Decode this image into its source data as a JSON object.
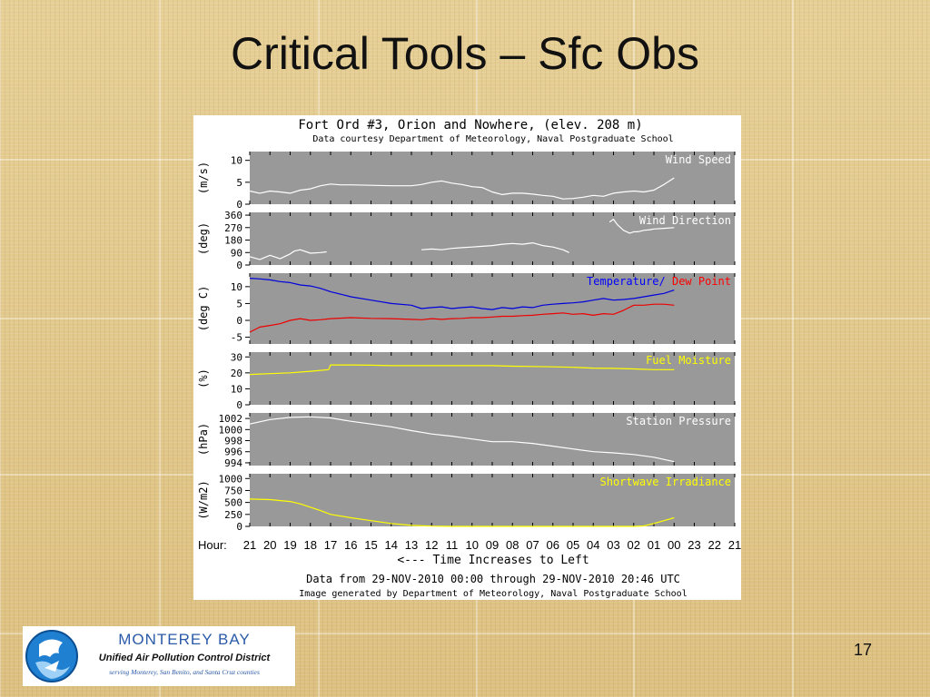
{
  "slide": {
    "title": "Critical Tools – Sfc Obs",
    "page_number": "17"
  },
  "logo": {
    "line1": "MONTEREY BAY",
    "line2": "Unified Air Pollution Control District",
    "line3": "serving Monterey, San Benito, and Santa Cruz counties"
  },
  "chart_data": {
    "type": "line",
    "title": "Fort Ord #3, Orion and Nowhere, (elev. 208 m)",
    "subtitle": "Data courtesy Department of Meteorology, Naval Postgraduate School",
    "x_label_prefix": "Hour:",
    "x_ticks": [
      "21",
      "20",
      "19",
      "18",
      "17",
      "16",
      "15",
      "14",
      "13",
      "12",
      "11",
      "10",
      "09",
      "08",
      "07",
      "06",
      "05",
      "04",
      "03",
      "02",
      "01",
      "00",
      "23",
      "22",
      "21"
    ],
    "x_caption": "<--- Time Increases to Left",
    "footer1": "Data from 29-NOV-2010 00:00 through 29-NOV-2010 20:46 UTC",
    "footer2": "Image generated by Department of Meteorology, Naval Postgraduate School",
    "panels": [
      {
        "label": "Wind Speed",
        "label_color": "#ffffff",
        "ylabel": "(m/s)",
        "ylim": [
          0,
          12
        ],
        "yticks": [
          "0",
          "5",
          "10"
        ],
        "ytick_values": [
          0,
          5,
          10
        ],
        "series": [
          {
            "color": "#ffffff",
            "x": [
              21,
              20.5,
              20,
              19.5,
              19,
              18.5,
              18,
              17.5,
              17,
              16.5,
              16,
              15,
              14,
              13,
              12.5,
              12,
              11.5,
              11,
              10.5,
              10,
              9.5,
              9,
              8.5,
              8,
              7.5,
              7,
              6.5,
              6,
              5.5,
              5,
              4.5,
              4,
              3.5,
              3,
              2.5,
              2,
              1.5,
              1,
              0.5,
              0
            ],
            "y": [
              3,
              2.5,
              3,
              2.8,
              2.5,
              3.2,
              3.5,
              4.2,
              4.6,
              4.4,
              4.4,
              4.3,
              4.2,
              4.2,
              4.5,
              5,
              5.3,
              4.8,
              4.5,
              4,
              3.8,
              2.8,
              2.2,
              2.5,
              2.5,
              2.3,
              2,
              1.8,
              1.2,
              1.3,
              1.6,
              2,
              1.8,
              2.5,
              2.8,
              3,
              2.8,
              3.2,
              4.5,
              6
            ]
          }
        ]
      },
      {
        "label": "Wind Direction",
        "label_color": "#ffffff",
        "ylabel": "(deg)",
        "ylim": [
          0,
          380
        ],
        "yticks": [
          "0",
          "90",
          "180",
          "270",
          "360"
        ],
        "ytick_values": [
          0,
          90,
          180,
          270,
          360
        ],
        "series": [
          {
            "color": "#ffffff",
            "x": [
              21,
              20.5,
              20,
              19.5,
              19,
              18.8,
              18.5,
              18,
              17.5,
              17.2
            ],
            "y": [
              60,
              40,
              70,
              45,
              80,
              100,
              110,
              85,
              90,
              95
            ]
          },
          {
            "color": "#ffffff",
            "x": [
              12.5,
              12,
              11.5,
              11,
              10.5,
              10,
              9.5,
              9,
              8.5,
              8,
              7.5,
              7,
              6.5,
              6,
              5.5,
              5.2
            ],
            "y": [
              110,
              115,
              110,
              120,
              125,
              130,
              135,
              140,
              150,
              155,
              150,
              160,
              140,
              130,
              110,
              90
            ]
          },
          {
            "color": "#ffffff",
            "x": [
              3.2,
              3,
              2.8,
              2.5,
              2.2,
              2,
              1.8,
              1.5,
              1.2,
              1,
              0.5,
              0
            ],
            "y": [
              310,
              330,
              290,
              250,
              230,
              240,
              240,
              250,
              255,
              260,
              265,
              270
            ]
          }
        ]
      },
      {
        "label": "Temperature/",
        "label2": "Dew Point",
        "label_color": "#0000ff",
        "label2_color": "#ff0000",
        "ylabel": "(deg C)",
        "ylim": [
          -7,
          14
        ],
        "yticks": [
          "-5",
          "0",
          "5",
          "10"
        ],
        "ytick_values": [
          -5,
          0,
          5,
          10
        ],
        "series": [
          {
            "name": "Temperature",
            "color": "#0000dd",
            "x": [
              21,
              20.5,
              20,
              19.5,
              19,
              18.5,
              18,
              17.5,
              17,
              16,
              15,
              14,
              13,
              12.5,
              12,
              11.5,
              11,
              10.5,
              10,
              9.5,
              9,
              8.5,
              8,
              7.5,
              7,
              6.5,
              6,
              5.5,
              5,
              4.5,
              4,
              3.5,
              3,
              2.5,
              2,
              1.5,
              1,
              0.5,
              0
            ],
            "y": [
              12.5,
              12.3,
              12,
              11.5,
              11.2,
              10.5,
              10.2,
              9.5,
              8.5,
              7,
              6,
              5,
              4.5,
              3.5,
              3.8,
              4,
              3.5,
              3.8,
              4,
              3.5,
              3.2,
              3.8,
              3.5,
              4,
              3.8,
              4.5,
              4.8,
              5,
              5.2,
              5.5,
              6,
              6.5,
              6,
              6.2,
              6.5,
              7,
              7.5,
              8,
              9
            ]
          },
          {
            "name": "Dew Point",
            "color": "#ee0000",
            "x": [
              21,
              20.5,
              20,
              19.5,
              19,
              18.5,
              18,
              17.5,
              17,
              16,
              15,
              14,
              13,
              12.5,
              12,
              11.5,
              11,
              10.5,
              10,
              9.5,
              9,
              8.5,
              8,
              7.5,
              7,
              6.5,
              6,
              5.5,
              5,
              4.5,
              4,
              3.5,
              3,
              2.5,
              2,
              1.5,
              1,
              0.5,
              0
            ],
            "y": [
              -3.5,
              -2,
              -1.5,
              -1,
              0,
              0.5,
              0,
              0.2,
              0.5,
              0.8,
              0.6,
              0.5,
              0.3,
              0.2,
              0.5,
              0.3,
              0.5,
              0.6,
              0.8,
              0.8,
              1,
              1.2,
              1.2,
              1.4,
              1.5,
              1.8,
              2,
              2.2,
              1.8,
              2,
              1.5,
              2,
              1.8,
              3,
              4.5,
              4.5,
              4.8,
              4.8,
              4.5
            ]
          }
        ]
      },
      {
        "label": "Fuel Moisture",
        "label_color": "#ffff00",
        "ylabel": "(%)",
        "ylim": [
          0,
          33
        ],
        "yticks": [
          "0",
          "10",
          "20",
          "30"
        ],
        "ytick_values": [
          0,
          10,
          20,
          30
        ],
        "series": [
          {
            "color": "#ffff00",
            "x": [
              21,
              20,
              19,
              18,
              17.1,
              17,
              16,
              15,
              14,
              13,
              12,
              11,
              10,
              9,
              8,
              7,
              6,
              5,
              4,
              3,
              2,
              1,
              0
            ],
            "y": [
              19,
              19.5,
              20,
              21,
              22,
              25,
              25,
              24.8,
              24.5,
              24.5,
              24.5,
              24.5,
              24.5,
              24.5,
              24.2,
              24,
              23.8,
              23.5,
              23,
              22.8,
              22.5,
              22,
              22
            ]
          }
        ]
      },
      {
        "label": "Station Pressure",
        "label_color": "#ffffff",
        "ylabel": "(hPa)",
        "ylim": [
          993.5,
          1003
        ],
        "yticks": [
          "994",
          "996",
          "998",
          "1000",
          "1002"
        ],
        "ytick_values": [
          994,
          996,
          998,
          1000,
          1002
        ],
        "series": [
          {
            "color": "#ffffff",
            "x": [
              21,
              20,
              19,
              18,
              17,
              16,
              15,
              14,
              13,
              12,
              11,
              10,
              9,
              8,
              7,
              6,
              5,
              4,
              3,
              2,
              1,
              0
            ],
            "y": [
              1001,
              1001.8,
              1002.2,
              1002.3,
              1002.1,
              1001.5,
              1001,
              1000.5,
              999.8,
              999.2,
              998.8,
              998.3,
              997.8,
              997.8,
              997.5,
              997,
              996.5,
              996,
              995.8,
              995.5,
              995,
              994.2
            ]
          }
        ]
      },
      {
        "label": "Shortwave Irradiance",
        "label_color": "#ffff00",
        "ylabel": "(W/m2)",
        "ylim": [
          0,
          1100
        ],
        "yticks": [
          "0",
          "250",
          "500",
          "750",
          "1000"
        ],
        "ytick_values": [
          0,
          250,
          500,
          750,
          1000
        ],
        "series": [
          {
            "color": "#ffff00",
            "x": [
              21,
              20,
              19,
              18.5,
              18,
              17.5,
              17,
              16,
              15,
              14,
              13,
              12,
              11,
              10,
              9,
              8,
              7,
              6,
              5,
              4,
              3,
              2,
              1.5,
              1,
              0.5,
              0
            ],
            "y": [
              570,
              560,
              520,
              470,
              400,
              330,
              250,
              180,
              120,
              60,
              20,
              5,
              0,
              0,
              0,
              0,
              0,
              0,
              0,
              0,
              0,
              0,
              10,
              60,
              120,
              180
            ]
          }
        ]
      }
    ]
  }
}
